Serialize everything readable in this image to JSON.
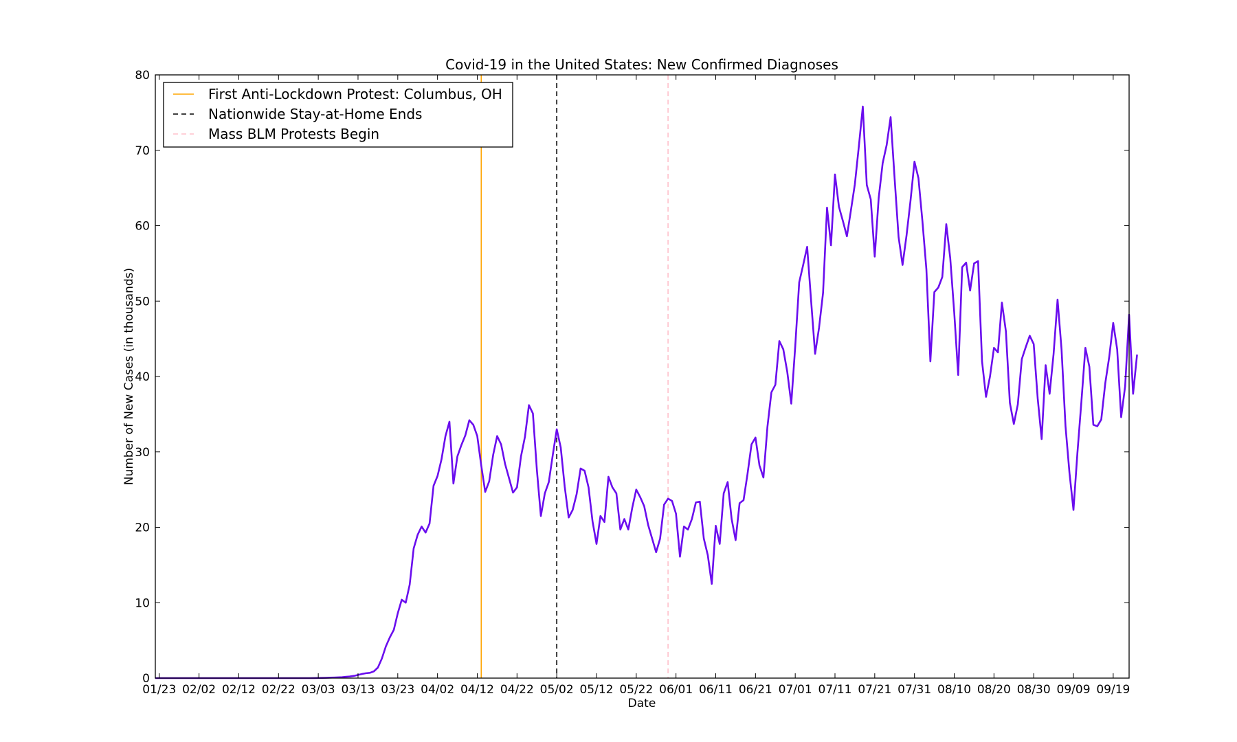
{
  "chart_data": {
    "type": "line",
    "title": "Covid-19 in the United States: New Confirmed Diagnoses",
    "xlabel": "Date",
    "ylabel": "Number of New Cases (in thousands)",
    "ylim": [
      0,
      80
    ],
    "yticks": [
      0,
      10,
      20,
      30,
      40,
      50,
      60,
      70,
      80
    ],
    "xlim": [
      "2020-01-22",
      "2020-09-23"
    ],
    "xticks": [
      {
        "date": "2020-01-23",
        "label": "01/23"
      },
      {
        "date": "2020-02-02",
        "label": "02/02"
      },
      {
        "date": "2020-02-12",
        "label": "02/12"
      },
      {
        "date": "2020-02-22",
        "label": "02/22"
      },
      {
        "date": "2020-03-03",
        "label": "03/03"
      },
      {
        "date": "2020-03-13",
        "label": "03/13"
      },
      {
        "date": "2020-03-23",
        "label": "03/23"
      },
      {
        "date": "2020-04-02",
        "label": "04/02"
      },
      {
        "date": "2020-04-12",
        "label": "04/12"
      },
      {
        "date": "2020-04-22",
        "label": "04/22"
      },
      {
        "date": "2020-05-02",
        "label": "05/02"
      },
      {
        "date": "2020-05-12",
        "label": "05/12"
      },
      {
        "date": "2020-05-22",
        "label": "05/22"
      },
      {
        "date": "2020-06-01",
        "label": "06/01"
      },
      {
        "date": "2020-06-11",
        "label": "06/11"
      },
      {
        "date": "2020-06-21",
        "label": "06/21"
      },
      {
        "date": "2020-07-01",
        "label": "07/01"
      },
      {
        "date": "2020-07-11",
        "label": "07/11"
      },
      {
        "date": "2020-07-21",
        "label": "07/21"
      },
      {
        "date": "2020-07-31",
        "label": "07/31"
      },
      {
        "date": "2020-08-10",
        "label": "08/10"
      },
      {
        "date": "2020-08-20",
        "label": "08/20"
      },
      {
        "date": "2020-08-30",
        "label": "08/30"
      },
      {
        "date": "2020-09-09",
        "label": "09/09"
      },
      {
        "date": "2020-09-19",
        "label": "09/19"
      }
    ],
    "grid": false,
    "legend_position": "top-left",
    "colors": {
      "series": "#6a0dee",
      "protest": "#ffa500",
      "stay_home": "#000000",
      "blm": "#ffc0cb"
    },
    "vlines": [
      {
        "label": "First Anti-Lockdown Protest: Columbus, OH",
        "date": "2020-04-13",
        "style": "solid",
        "color": "#ffa500"
      },
      {
        "label": "Nationwide Stay-at-Home Ends",
        "date": "2020-05-02",
        "style": "dashed",
        "color": "#000000"
      },
      {
        "label": "Mass BLM Protests Begin",
        "date": "2020-05-30",
        "style": "dashed",
        "color": "#ffc0cb"
      }
    ],
    "series": [
      {
        "start": "2020-01-22",
        "values": [
          0,
          0,
          0,
          0,
          0,
          0,
          0,
          0,
          0,
          0,
          0,
          0,
          0,
          0,
          0,
          0,
          0,
          0,
          0,
          0,
          0,
          0,
          0,
          0,
          0,
          0,
          0,
          0,
          0,
          0,
          0,
          0,
          0,
          0,
          0,
          0,
          0,
          0,
          0,
          0,
          0.01,
          0.02,
          0.03,
          0.04,
          0.06,
          0.08,
          0.1,
          0.12,
          0.18,
          0.22,
          0.3,
          0.42,
          0.55,
          0.65,
          0.7,
          0.9,
          1.4,
          2.6,
          4.2,
          5.4,
          6.4,
          8.6,
          10.4,
          10.0,
          12.4,
          17.2,
          19.0,
          20.1,
          19.3,
          20.5,
          25.5,
          26.8,
          29.0,
          32.1,
          34.0,
          25.8,
          29.4,
          30.9,
          32.2,
          34.2,
          33.6,
          32.1,
          28.2,
          24.7,
          26.1,
          29.6,
          32.1,
          31.0,
          28.4,
          26.5,
          24.6,
          25.3,
          29.4,
          32.0,
          36.2,
          35.1,
          27.6,
          21.5,
          24.5,
          26.0,
          29.6,
          33.0,
          30.6,
          25.4,
          21.3,
          22.3,
          24.4,
          27.8,
          27.5,
          25.3,
          20.8,
          17.8,
          21.5,
          20.7,
          26.7,
          25.3,
          24.5,
          19.7,
          21.1,
          19.7,
          22.6,
          25.0,
          24.0,
          22.8,
          20.3,
          18.5,
          16.7,
          18.5,
          23.0,
          23.8,
          23.5,
          21.8,
          16.1,
          20.1,
          19.7,
          21.1,
          23.3,
          23.4,
          18.5,
          16.3,
          12.5,
          20.2,
          17.8,
          24.5,
          26.0,
          21.1,
          18.3,
          23.2,
          23.6,
          27.1,
          31.0,
          31.9,
          28.2,
          26.6,
          33.3,
          37.9,
          38.9,
          44.7,
          43.6,
          40.6,
          36.4,
          44.0,
          52.5,
          54.8,
          57.2,
          50.0,
          43.0,
          46.5,
          51.1,
          62.4,
          57.4,
          66.8,
          62.5,
          60.6,
          58.6,
          62.0,
          65.5,
          70.5,
          75.8,
          65.4,
          63.5,
          55.9,
          63.7,
          68.3,
          70.7,
          74.4,
          66.3,
          58.5,
          54.8,
          58.7,
          63.3,
          68.5,
          66.3,
          60.6,
          54.2,
          42.0,
          51.2,
          51.8,
          53.2,
          60.2,
          55.7,
          48.5,
          40.2,
          54.5,
          55.1,
          51.4,
          55.0,
          55.3,
          42.0,
          37.3,
          40.0,
          43.8,
          43.2,
          49.8,
          46.0,
          36.5,
          33.7,
          36.3,
          42.3,
          43.9,
          45.4,
          44.3,
          37.1,
          31.7,
          41.5,
          37.7,
          43.0,
          50.2,
          43.6,
          33.4,
          27.2,
          22.3,
          29.9,
          36.7,
          43.8,
          41.3,
          33.6,
          33.4,
          34.3,
          39.1,
          42.6,
          47.1,
          43.6,
          34.6,
          38.7,
          48.2,
          37.7,
          42.9
        ]
      }
    ]
  }
}
